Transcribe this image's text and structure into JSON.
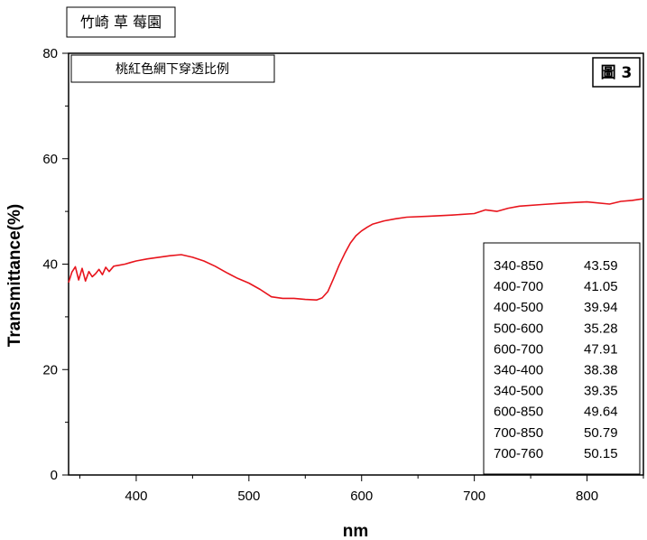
{
  "header": {
    "title": "竹崎 草 莓園"
  },
  "chart_data": {
    "type": "line",
    "title": "",
    "subtitle": "桃紅色網下穿透比例",
    "figure_label": "圖 3",
    "xlabel": "nm",
    "ylabel": "Transmittance(%)",
    "xlim": [
      340,
      850
    ],
    "ylim": [
      0,
      80
    ],
    "x_ticks": [
      400,
      500,
      600,
      700,
      800
    ],
    "y_ticks": [
      0,
      20,
      40,
      60,
      80
    ],
    "grid": false,
    "line_color": "#e8141c",
    "series": [
      {
        "x": [
          340,
          343,
          346,
          349,
          352,
          355,
          358,
          361,
          364,
          367,
          370,
          373,
          376,
          380,
          385,
          390,
          395,
          400,
          410,
          420,
          430,
          440,
          450,
          460,
          470,
          480,
          490,
          500,
          510,
          520,
          530,
          540,
          550,
          560,
          565,
          570,
          575,
          580,
          585,
          590,
          595,
          600,
          605,
          610,
          620,
          630,
          640,
          660,
          680,
          700,
          710,
          720,
          730,
          740,
          760,
          780,
          800,
          820,
          830,
          840,
          850
        ],
        "y": [
          36.5,
          38.5,
          39.5,
          37.0,
          39.2,
          36.8,
          38.6,
          37.6,
          38.2,
          39.0,
          38.0,
          39.4,
          38.6,
          39.6,
          39.8,
          40.0,
          40.3,
          40.6,
          41.0,
          41.3,
          41.6,
          41.8,
          41.3,
          40.6,
          39.6,
          38.4,
          37.3,
          36.4,
          35.2,
          33.8,
          33.5,
          33.5,
          33.3,
          33.2,
          33.6,
          34.8,
          37.2,
          39.8,
          42.0,
          44.0,
          45.4,
          46.3,
          47.0,
          47.6,
          48.2,
          48.6,
          48.9,
          49.1,
          49.3,
          49.6,
          50.3,
          50.0,
          50.6,
          51.0,
          51.3,
          51.6,
          51.8,
          51.4,
          51.9,
          52.1,
          52.4
        ]
      }
    ],
    "legend_table": [
      {
        "range": "340-850",
        "value": "43.59"
      },
      {
        "range": "400-700",
        "value": "41.05"
      },
      {
        "range": "400-500",
        "value": "39.94"
      },
      {
        "range": "500-600",
        "value": "35.28"
      },
      {
        "range": "600-700",
        "value": "47.91"
      },
      {
        "range": "340-400",
        "value": "38.38"
      },
      {
        "range": "340-500",
        "value": "39.35"
      },
      {
        "range": "600-850",
        "value": "49.64"
      },
      {
        "range": "700-850",
        "value": "50.79"
      },
      {
        "range": "700-760",
        "value": "50.15"
      }
    ],
    "legend_placement": "bottom-right"
  }
}
